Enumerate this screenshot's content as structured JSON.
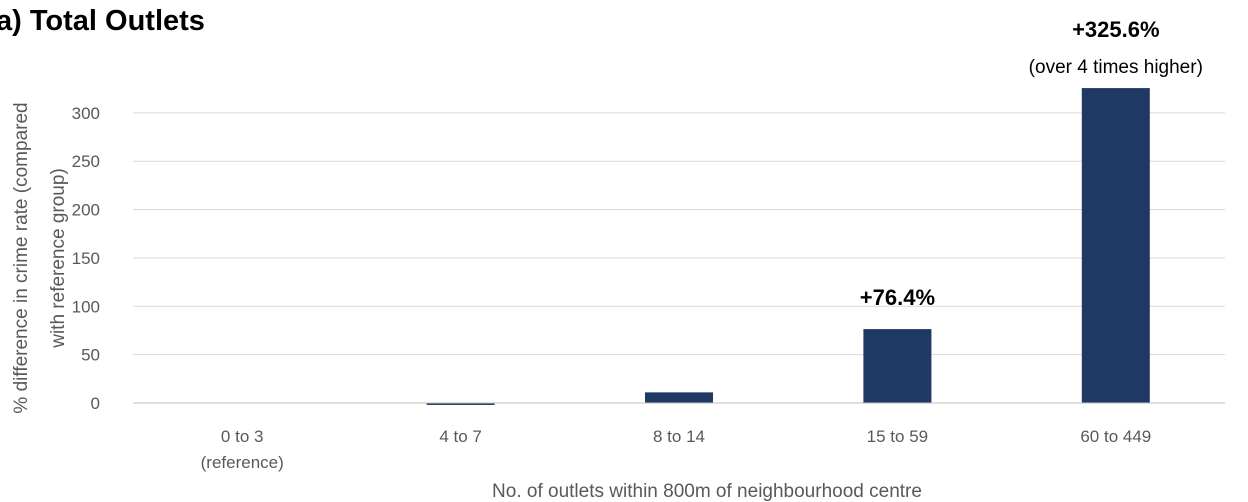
{
  "chart_data": {
    "type": "bar",
    "title": "a) Total Outlets",
    "xlabel": "No. of outlets within 800m of neighbourhood centre",
    "ylabel_lines": [
      "% difference in crime rate  (compared",
      "with reference group)"
    ],
    "categories": [
      {
        "lines": [
          "0 to 3",
          "(reference)"
        ]
      },
      {
        "lines": [
          "4 to 7"
        ]
      },
      {
        "lines": [
          "8 to 14"
        ]
      },
      {
        "lines": [
          "15 to 59"
        ]
      },
      {
        "lines": [
          "60 to 449"
        ]
      }
    ],
    "values": [
      0,
      -2,
      11,
      76.4,
      325.6
    ],
    "ylim": [
      0,
      325.6
    ],
    "yticks": [
      0,
      50,
      100,
      150,
      200,
      250,
      300
    ],
    "grid": true,
    "bar_color": "#203864",
    "data_labels": [
      {
        "index": 3,
        "text": "+76.4%",
        "note": ""
      },
      {
        "index": 4,
        "text": "+325.6%",
        "note": "(over 4 times higher)"
      }
    ]
  }
}
